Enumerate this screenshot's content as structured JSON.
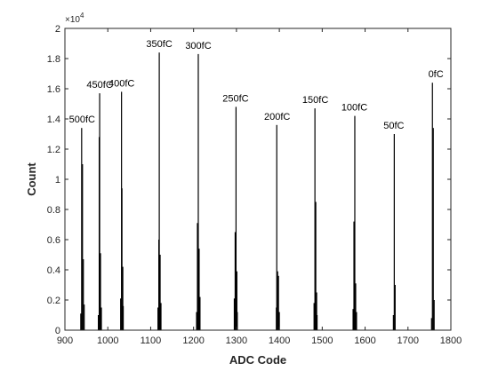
{
  "chart_data": {
    "type": "bar",
    "xlabel": "ADC Code",
    "ylabel": "Count",
    "xlim": [
      900,
      1800
    ],
    "ylim": [
      0,
      20000
    ],
    "x_ticks": [
      900,
      1000,
      1100,
      1200,
      1300,
      1400,
      1500,
      1600,
      1700,
      1800
    ],
    "y_ticks": [
      0,
      2000,
      4000,
      6000,
      8000,
      10000,
      12000,
      14000,
      16000,
      18000,
      20000
    ],
    "y_tick_labels": [
      "0",
      "0.2",
      "0.4",
      "0.6",
      "0.8",
      "1",
      "1.2",
      "1.4",
      "1.6",
      "1.8",
      "2"
    ],
    "y_exponent_base": "×10",
    "y_exponent_power": "4",
    "grid": false,
    "bar_color": "#000000",
    "peaks": [
      {
        "label": "500fC",
        "x": 940,
        "bins": [
          [
            937,
            1100
          ],
          [
            939,
            13400
          ],
          [
            941,
            11000
          ],
          [
            943,
            4700
          ],
          [
            945,
            1700
          ]
        ]
      },
      {
        "label": "450fC",
        "x": 981,
        "bins": [
          [
            978,
            1000
          ],
          [
            980,
            12800
          ],
          [
            981,
            15700
          ],
          [
            983,
            5100
          ],
          [
            985,
            1500
          ]
        ]
      },
      {
        "label": "400fC",
        "x": 1032,
        "bins": [
          [
            1030,
            2100
          ],
          [
            1032,
            15800
          ],
          [
            1033,
            9400
          ],
          [
            1035,
            4200
          ],
          [
            1036,
            1600
          ]
        ]
      },
      {
        "label": "350fC",
        "x": 1120,
        "bins": [
          [
            1117,
            1500
          ],
          [
            1119,
            6000
          ],
          [
            1120,
            18400
          ],
          [
            1122,
            5000
          ],
          [
            1124,
            1800
          ]
        ]
      },
      {
        "label": "300fC",
        "x": 1211,
        "bins": [
          [
            1207,
            1200
          ],
          [
            1209,
            7100
          ],
          [
            1211,
            18300
          ],
          [
            1213,
            5400
          ],
          [
            1215,
            2200
          ]
        ]
      },
      {
        "label": "250fC",
        "x": 1298,
        "bins": [
          [
            1295,
            2100
          ],
          [
            1297,
            6500
          ],
          [
            1299,
            14800
          ],
          [
            1301,
            3900
          ],
          [
            1302,
            1200
          ]
        ]
      },
      {
        "label": "200fC",
        "x": 1395,
        "bins": [
          [
            1393,
            1500
          ],
          [
            1394,
            13600
          ],
          [
            1396,
            3900
          ],
          [
            1398,
            3600
          ],
          [
            1400,
            1200
          ]
        ]
      },
      {
        "label": "150fC",
        "x": 1484,
        "bins": [
          [
            1481,
            1800
          ],
          [
            1483,
            14700
          ],
          [
            1485,
            8500
          ],
          [
            1487,
            2500
          ],
          [
            1488,
            1000
          ]
        ]
      },
      {
        "label": "100fC",
        "x": 1575,
        "bins": [
          [
            1572,
            1400
          ],
          [
            1574,
            7200
          ],
          [
            1576,
            14200
          ],
          [
            1578,
            3100
          ],
          [
            1580,
            1200
          ]
        ]
      },
      {
        "label": "50fC",
        "x": 1667,
        "bins": [
          [
            1666,
            1000
          ],
          [
            1668,
            13000
          ],
          [
            1670,
            3000
          ]
        ]
      },
      {
        "label": "0fC",
        "x": 1758,
        "bins": [
          [
            1755,
            800
          ],
          [
            1757,
            16400
          ],
          [
            1759,
            13400
          ],
          [
            1761,
            2000
          ]
        ]
      }
    ]
  }
}
